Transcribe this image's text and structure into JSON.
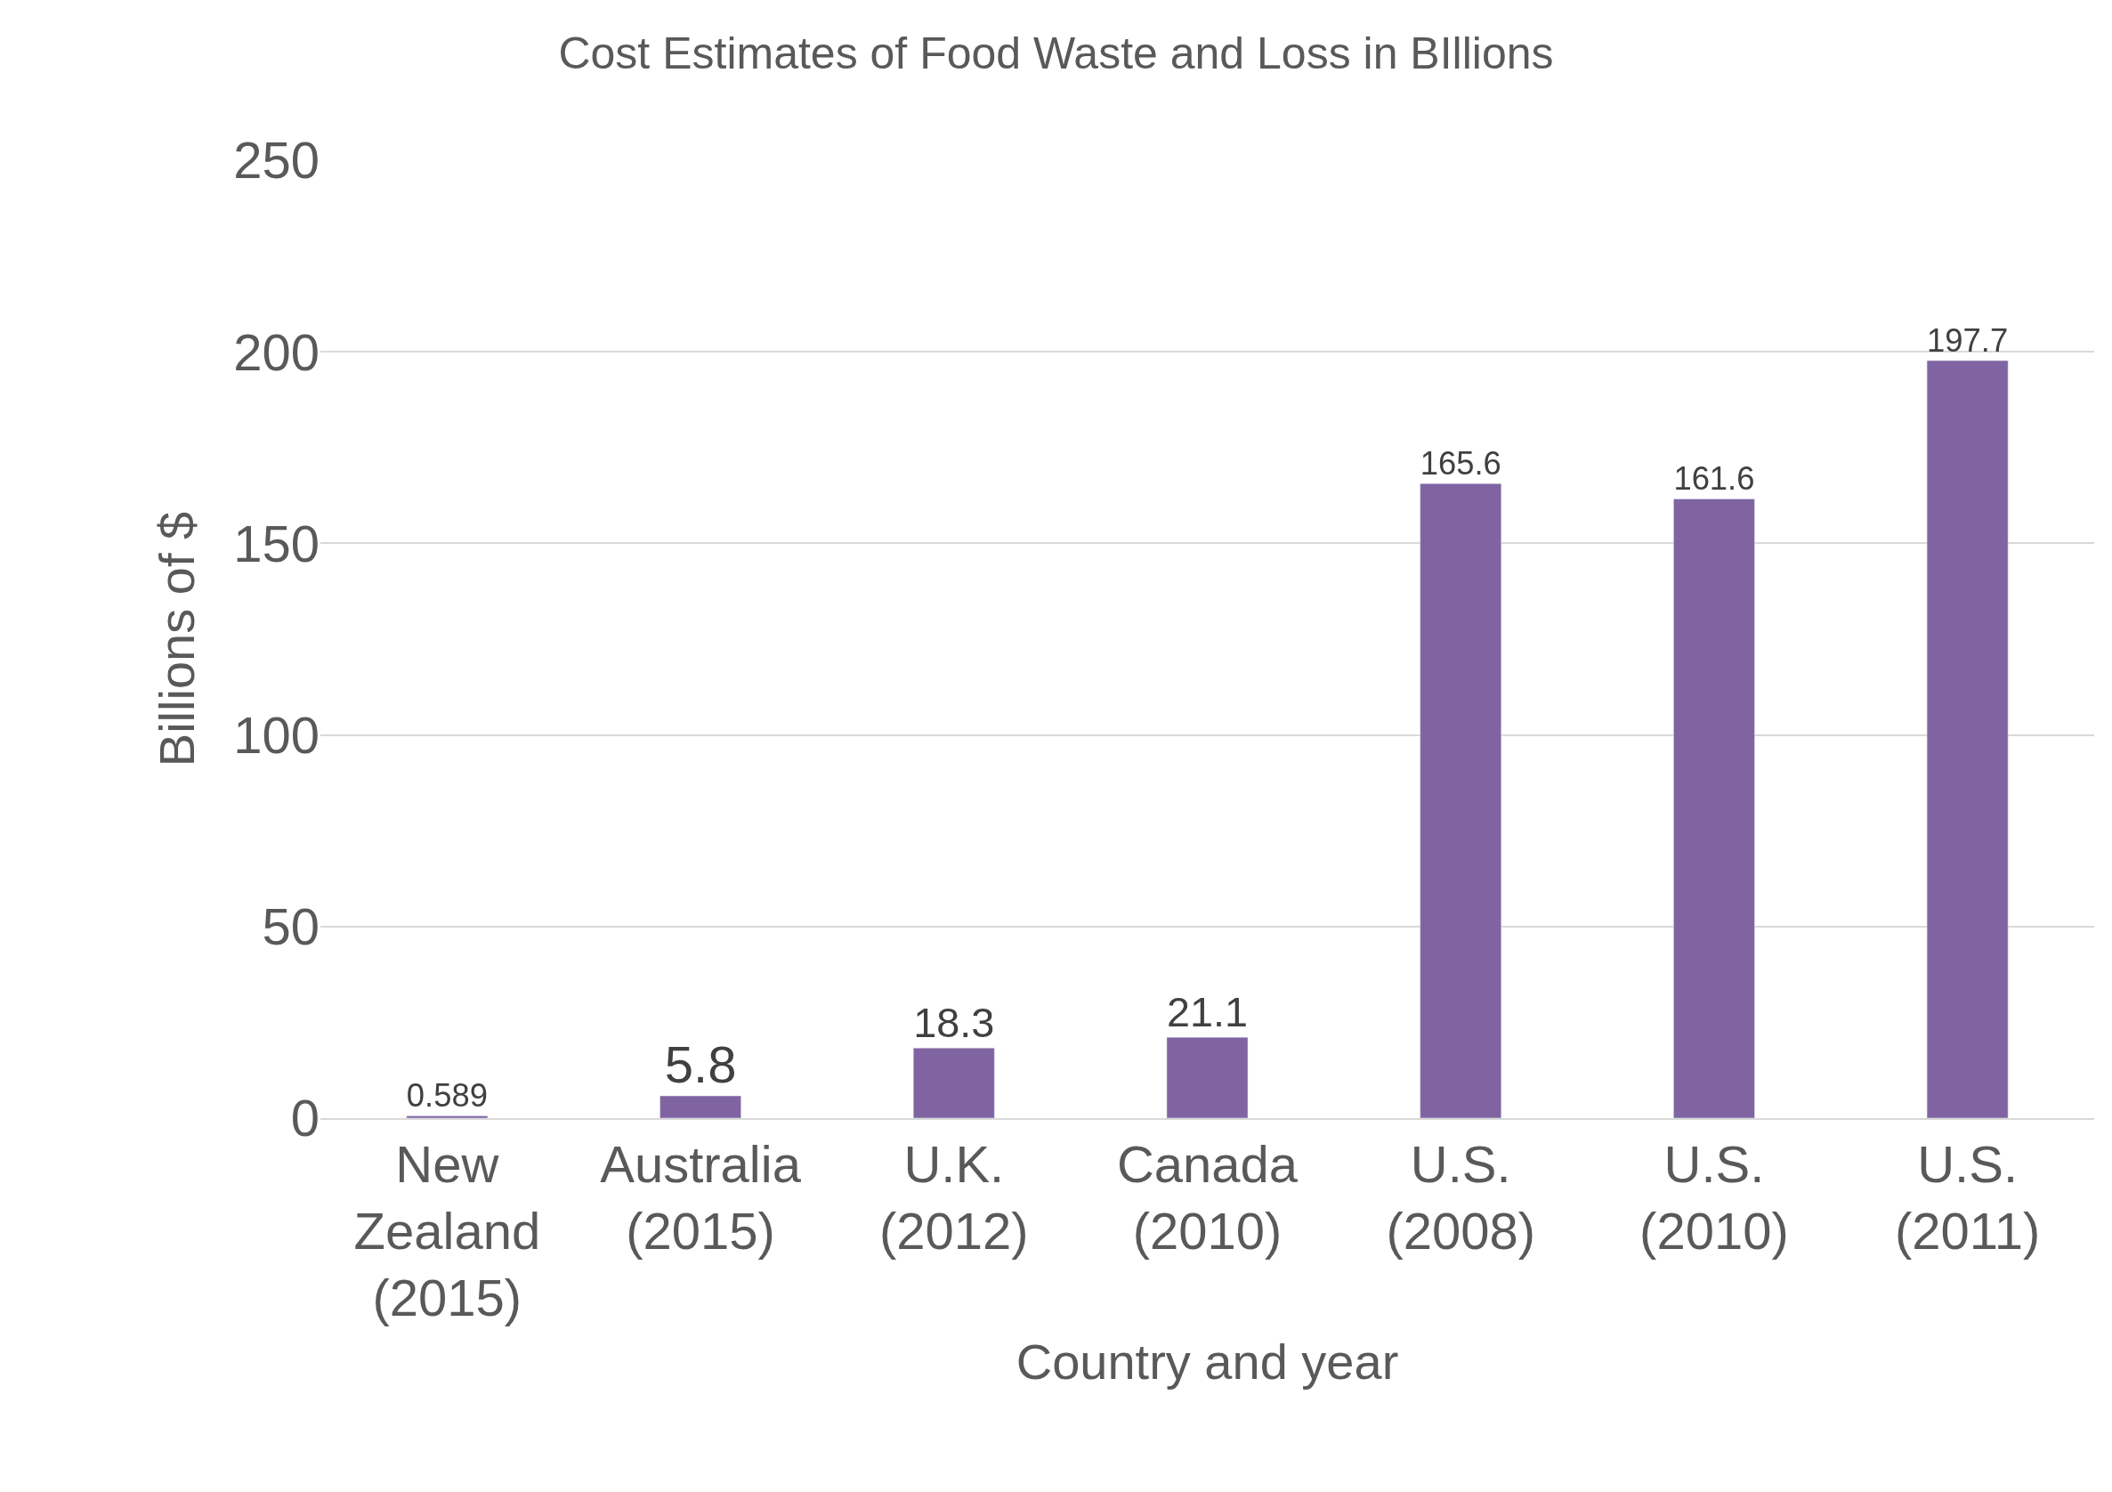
{
  "chart_data": {
    "type": "bar",
    "title": "Cost Estimates of Food Waste and Loss in BIllions",
    "xlabel": "Country and year",
    "ylabel": "Billions of $",
    "categories": [
      "New Zealand (2015)",
      "Australia (2015)",
      "U.K. (2012)",
      "Canada (2010)",
      "U.S. (2008)",
      "U.S. (2010)",
      "U.S. (2011)"
    ],
    "values": [
      0.589,
      5.8,
      18.3,
      21.1,
      165.6,
      161.6,
      197.7
    ],
    "color": "#8064a2",
    "ylim": [
      0,
      250
    ],
    "yticks": [
      0,
      50,
      100,
      150,
      200,
      250
    ],
    "grid": "y",
    "data_labels": true,
    "legend": false
  }
}
